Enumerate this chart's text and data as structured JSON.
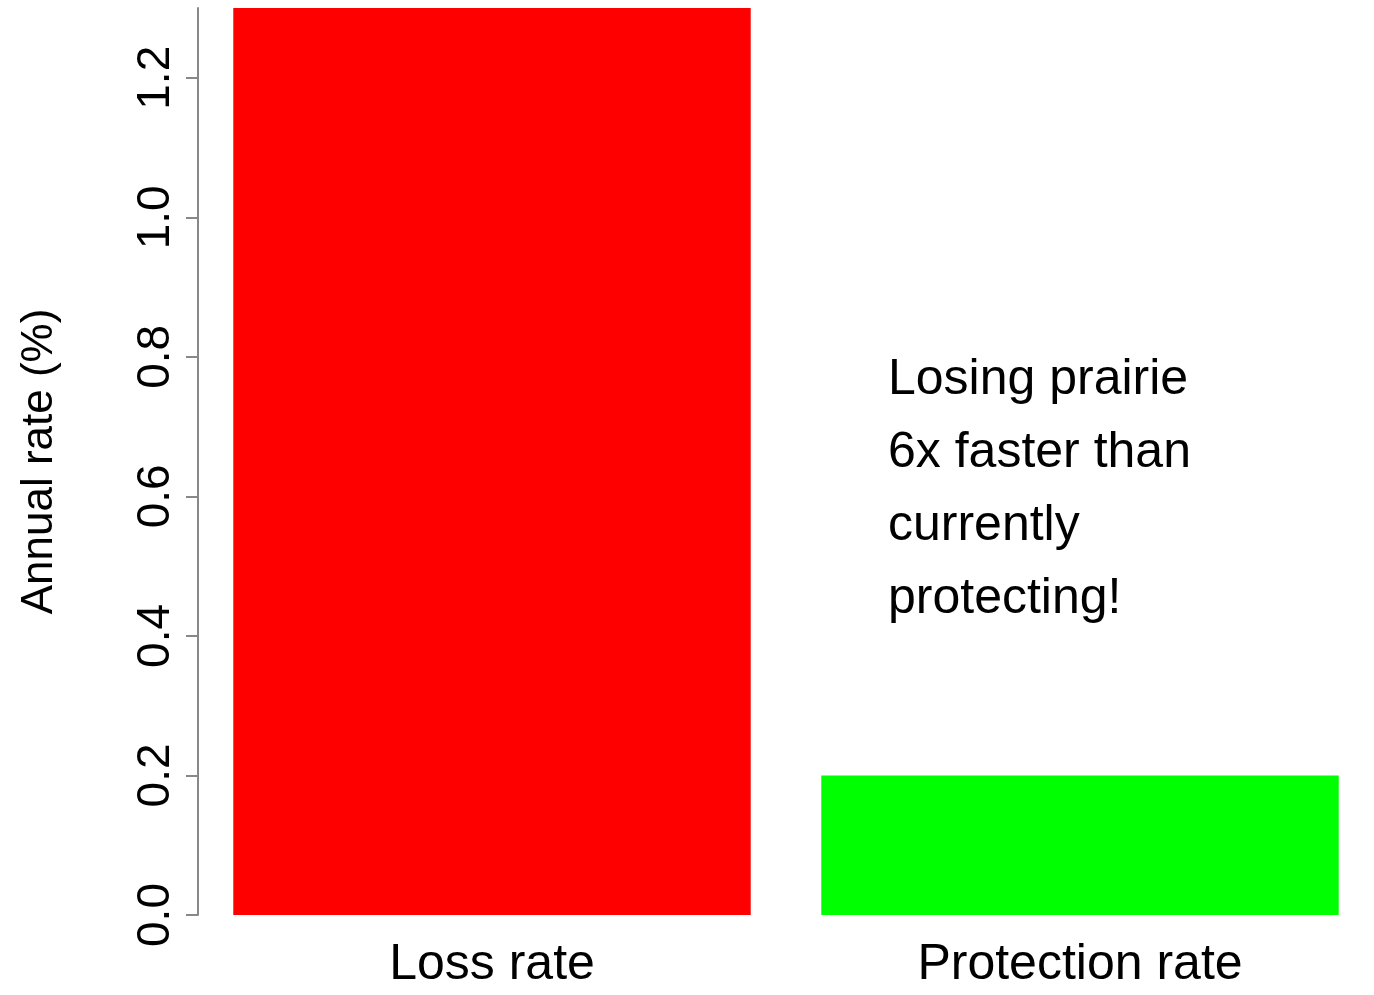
{
  "chart_data": {
    "type": "bar",
    "ylabel": "Annual rate (%)",
    "categories": [
      "Loss rate",
      "Protection rate"
    ],
    "values": [
      1.3,
      0.2
    ],
    "colors": [
      "#ff0000",
      "#00ff00"
    ],
    "ylim": [
      0,
      1.3
    ],
    "yticks": [
      {
        "value": 0,
        "label": "0.0"
      },
      0.2,
      0.4,
      0.6,
      0.8,
      {
        "value": 1,
        "label": "1.0"
      },
      1.2
    ],
    "grid": false,
    "annotations": [
      "Losing prairie\n6x faster than\ncurrently\nprotecting!"
    ]
  }
}
